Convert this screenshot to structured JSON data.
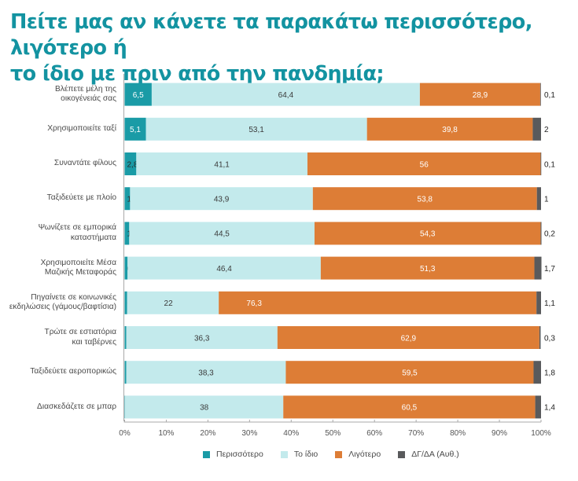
{
  "title_lines": [
    "Πείτε μας αν κάνετε τα παρακάτω περισσότερο, λιγότερο ή",
    "το ίδιο με πριν από την πανδημία;"
  ],
  "colors": {
    "more": "#1a9ba6",
    "same": "#c3eaec",
    "less": "#dd7d36",
    "dkna": "#595a5c",
    "title": "#1393a1"
  },
  "chart_data": {
    "type": "bar",
    "orientation": "horizontal",
    "stacked": true,
    "title": "Πείτε μας αν κάνετε τα παρακάτω περισσότερο, λιγότερο ή το ίδιο με πριν από την πανδημία;",
    "xlabel": "",
    "ylabel": "",
    "xlim": [
      0,
      100
    ],
    "x_ticks": [
      "0%",
      "10%",
      "20%",
      "30%",
      "40%",
      "50%",
      "60%",
      "70%",
      "80%",
      "90%",
      "100%"
    ],
    "grid": false,
    "legend_position": "bottom",
    "categories": [
      [
        "Βλέπετε μέλη της",
        "οικογένειάς σας"
      ],
      [
        "Χρησιμοποιείτε ταξί"
      ],
      [
        "Συναντάτε φίλους"
      ],
      [
        "Ταξιδεύετε με πλοίο"
      ],
      [
        "Ψωνίζετε σε εμπορικά",
        "καταστήματα"
      ],
      [
        "Χρησιμοποιείτε Μέσα",
        "Μαζικής Μεταφοράς"
      ],
      [
        "Πηγαίνετε σε κοινωνικές",
        "εκδηλώσεις (γάμους/βαφτίσια)"
      ],
      [
        "Τρώτε σε εστιατόρια",
        "και ταβέρνες"
      ],
      [
        "Ταξιδεύετε αεροπορικώς"
      ],
      [
        "Διασκεδάζετε σε μπαρ"
      ]
    ],
    "series": [
      {
        "name": "Περισσότερο",
        "key": "more",
        "values": [
          6.5,
          5.1,
          2.8,
          1.3,
          1.1,
          0.7,
          0.6,
          0.4,
          0.4,
          0.1
        ],
        "labels": [
          "6,5",
          "5,1",
          "2,8",
          "1,3",
          "1,1",
          "0,7",
          "0,6",
          "0,4",
          "0,4",
          "0,1"
        ]
      },
      {
        "name": "Το ίδιο",
        "key": "same",
        "values": [
          64.4,
          53.1,
          41.1,
          43.9,
          44.5,
          46.4,
          22,
          36.3,
          38.3,
          38
        ],
        "labels": [
          "64,4",
          "53,1",
          "41,1",
          "43,9",
          "44,5",
          "46,4",
          "22",
          "36,3",
          "38,3",
          "38"
        ]
      },
      {
        "name": "Λιγότερο",
        "key": "less",
        "values": [
          28.9,
          39.8,
          56,
          53.8,
          54.3,
          51.3,
          76.3,
          62.9,
          59.5,
          60.5
        ],
        "labels": [
          "28,9",
          "39,8",
          "56",
          "53,8",
          "54,3",
          "51,3",
          "76,3",
          "62,9",
          "59,5",
          "60,5"
        ]
      },
      {
        "name": "ΔΓ/ΔΑ (Αυθ.)",
        "key": "dkna",
        "values": [
          0.1,
          2,
          0.1,
          1,
          0.2,
          1.7,
          1.1,
          0.3,
          1.8,
          1.4
        ],
        "labels": [
          "0,1",
          "2",
          "0,1",
          "1",
          "0,2",
          "1,7",
          "1,1",
          "0,3",
          "1,8",
          "1,4"
        ]
      }
    ]
  }
}
